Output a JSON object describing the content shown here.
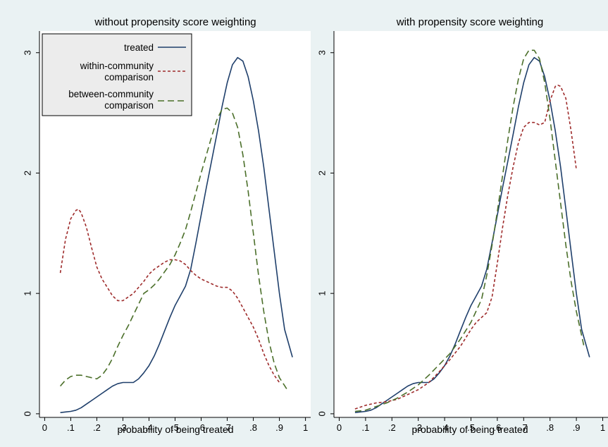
{
  "colors": {
    "figure_background": "#eaf2f3",
    "plot_background": "#ffffff",
    "legend_background": "#ececec",
    "treated": "#1f3f6b",
    "within": "#9e2b2b",
    "between": "#4b6f2a"
  },
  "chart_data": [
    {
      "type": "line",
      "title": "without propensity score weighting",
      "xlabel": "probability of being treated",
      "ylabel": "",
      "xlim": [
        -0.02,
        1.02
      ],
      "ylim": [
        -0.03,
        3.18
      ],
      "xticks": [
        0,
        0.1,
        0.2,
        0.3,
        0.4,
        0.5,
        0.6,
        0.7,
        0.8,
        0.9,
        1
      ],
      "xtick_labels": [
        "0",
        ".1",
        ".2",
        ".3",
        ".4",
        ".5",
        ".6",
        ".7",
        ".8",
        ".9",
        "1"
      ],
      "yticks": [
        0,
        1,
        2,
        3
      ],
      "ytick_labels": [
        "0",
        "1",
        "2",
        "3"
      ],
      "grid": false,
      "legend": {
        "placement": "top-left",
        "entries": [
          {
            "label_lines": [
              "treated"
            ],
            "series": "treated"
          },
          {
            "label_lines": [
              "within-community",
              "comparison"
            ],
            "series": "within"
          },
          {
            "label_lines": [
              "between-community",
              "comparison"
            ],
            "series": "between"
          }
        ]
      },
      "series": [
        {
          "name": "treated",
          "style": "solid",
          "color_key": "treated",
          "x": [
            0.06,
            0.08,
            0.1,
            0.12,
            0.14,
            0.16,
            0.18,
            0.2,
            0.22,
            0.24,
            0.26,
            0.28,
            0.3,
            0.32,
            0.34,
            0.36,
            0.38,
            0.4,
            0.42,
            0.44,
            0.46,
            0.48,
            0.5,
            0.52,
            0.54,
            0.56,
            0.58,
            0.6,
            0.62,
            0.64,
            0.66,
            0.68,
            0.7,
            0.72,
            0.74,
            0.76,
            0.78,
            0.8,
            0.82,
            0.84,
            0.86,
            0.88,
            0.9,
            0.92,
            0.95
          ],
          "y": [
            0.01,
            0.015,
            0.02,
            0.03,
            0.05,
            0.08,
            0.11,
            0.14,
            0.17,
            0.2,
            0.23,
            0.25,
            0.26,
            0.26,
            0.26,
            0.29,
            0.34,
            0.4,
            0.48,
            0.58,
            0.69,
            0.8,
            0.9,
            0.98,
            1.06,
            1.2,
            1.42,
            1.65,
            1.88,
            2.1,
            2.32,
            2.55,
            2.75,
            2.9,
            2.96,
            2.93,
            2.8,
            2.6,
            2.35,
            2.05,
            1.7,
            1.35,
            1.0,
            0.7,
            0.47
          ]
        },
        {
          "name": "within-community comparison",
          "style": "short-dash",
          "color_key": "within",
          "x": [
            0.06,
            0.08,
            0.1,
            0.12,
            0.13,
            0.14,
            0.16,
            0.18,
            0.2,
            0.22,
            0.24,
            0.26,
            0.28,
            0.3,
            0.32,
            0.34,
            0.36,
            0.38,
            0.4,
            0.42,
            0.44,
            0.46,
            0.48,
            0.5,
            0.52,
            0.54,
            0.56,
            0.58,
            0.6,
            0.62,
            0.64,
            0.66,
            0.68,
            0.7,
            0.72,
            0.74,
            0.76,
            0.78,
            0.8,
            0.82,
            0.84,
            0.86,
            0.88,
            0.9
          ],
          "y": [
            1.17,
            1.45,
            1.62,
            1.69,
            1.7,
            1.67,
            1.55,
            1.38,
            1.22,
            1.12,
            1.05,
            0.98,
            0.94,
            0.94,
            0.97,
            1.0,
            1.05,
            1.1,
            1.16,
            1.2,
            1.23,
            1.26,
            1.28,
            1.28,
            1.27,
            1.24,
            1.19,
            1.15,
            1.12,
            1.1,
            1.08,
            1.06,
            1.05,
            1.05,
            1.02,
            0.96,
            0.88,
            0.8,
            0.72,
            0.62,
            0.5,
            0.4,
            0.32,
            0.26
          ]
        },
        {
          "name": "between-community comparison",
          "style": "long-dash",
          "color_key": "between",
          "x": [
            0.06,
            0.08,
            0.1,
            0.12,
            0.14,
            0.16,
            0.18,
            0.2,
            0.22,
            0.24,
            0.26,
            0.28,
            0.3,
            0.32,
            0.34,
            0.36,
            0.38,
            0.4,
            0.42,
            0.44,
            0.46,
            0.48,
            0.5,
            0.52,
            0.54,
            0.56,
            0.58,
            0.6,
            0.62,
            0.64,
            0.66,
            0.68,
            0.7,
            0.72,
            0.74,
            0.76,
            0.78,
            0.8,
            0.82,
            0.84,
            0.86,
            0.88,
            0.9,
            0.93
          ],
          "y": [
            0.23,
            0.28,
            0.31,
            0.32,
            0.32,
            0.31,
            0.3,
            0.29,
            0.32,
            0.38,
            0.46,
            0.56,
            0.65,
            0.73,
            0.82,
            0.91,
            1.0,
            1.03,
            1.07,
            1.12,
            1.18,
            1.24,
            1.32,
            1.42,
            1.53,
            1.68,
            1.84,
            2.0,
            2.15,
            2.3,
            2.44,
            2.53,
            2.54,
            2.5,
            2.38,
            2.15,
            1.85,
            1.5,
            1.15,
            0.85,
            0.6,
            0.42,
            0.3,
            0.2
          ]
        }
      ]
    },
    {
      "type": "line",
      "title": "with propensity score weighting",
      "xlabel": "probability of being treated",
      "ylabel": "",
      "xlim": [
        -0.02,
        1.02
      ],
      "ylim": [
        -0.03,
        3.18
      ],
      "xticks": [
        0,
        0.1,
        0.2,
        0.3,
        0.4,
        0.5,
        0.6,
        0.7,
        0.8,
        0.9,
        1
      ],
      "xtick_labels": [
        "0",
        ".1",
        ".2",
        ".3",
        ".4",
        ".5",
        ".6",
        ".7",
        ".8",
        ".9",
        "1"
      ],
      "yticks": [
        0,
        1,
        2,
        3
      ],
      "ytick_labels": [
        "0",
        "1",
        "2",
        "3"
      ],
      "grid": false,
      "series": [
        {
          "name": "treated",
          "style": "solid",
          "color_key": "treated",
          "x": [
            0.06,
            0.08,
            0.1,
            0.12,
            0.14,
            0.16,
            0.18,
            0.2,
            0.22,
            0.24,
            0.26,
            0.28,
            0.3,
            0.32,
            0.34,
            0.36,
            0.38,
            0.4,
            0.42,
            0.44,
            0.46,
            0.48,
            0.5,
            0.52,
            0.54,
            0.56,
            0.58,
            0.6,
            0.62,
            0.64,
            0.66,
            0.68,
            0.7,
            0.72,
            0.74,
            0.76,
            0.78,
            0.8,
            0.82,
            0.84,
            0.86,
            0.88,
            0.9,
            0.92,
            0.95
          ],
          "y": [
            0.01,
            0.015,
            0.02,
            0.03,
            0.05,
            0.08,
            0.11,
            0.14,
            0.17,
            0.2,
            0.23,
            0.25,
            0.26,
            0.26,
            0.26,
            0.29,
            0.34,
            0.4,
            0.48,
            0.58,
            0.69,
            0.8,
            0.9,
            0.98,
            1.06,
            1.2,
            1.42,
            1.65,
            1.88,
            2.1,
            2.32,
            2.55,
            2.75,
            2.9,
            2.96,
            2.93,
            2.8,
            2.6,
            2.35,
            2.05,
            1.7,
            1.35,
            1.0,
            0.7,
            0.47
          ]
        },
        {
          "name": "within-community comparison",
          "style": "short-dash",
          "color_key": "within",
          "x": [
            0.06,
            0.1,
            0.14,
            0.18,
            0.22,
            0.26,
            0.3,
            0.34,
            0.38,
            0.42,
            0.46,
            0.5,
            0.52,
            0.54,
            0.56,
            0.58,
            0.6,
            0.62,
            0.64,
            0.66,
            0.68,
            0.7,
            0.72,
            0.74,
            0.76,
            0.78,
            0.8,
            0.82,
            0.83,
            0.84,
            0.86,
            0.88,
            0.9
          ],
          "y": [
            0.04,
            0.07,
            0.09,
            0.1,
            0.12,
            0.16,
            0.2,
            0.26,
            0.35,
            0.45,
            0.56,
            0.7,
            0.76,
            0.8,
            0.84,
            0.97,
            1.25,
            1.55,
            1.82,
            2.05,
            2.25,
            2.38,
            2.42,
            2.42,
            2.4,
            2.42,
            2.6,
            2.72,
            2.73,
            2.72,
            2.62,
            2.35,
            2.03
          ]
        },
        {
          "name": "between-community comparison",
          "style": "long-dash",
          "color_key": "between",
          "x": [
            0.06,
            0.1,
            0.14,
            0.18,
            0.22,
            0.26,
            0.3,
            0.34,
            0.38,
            0.42,
            0.46,
            0.5,
            0.54,
            0.56,
            0.58,
            0.6,
            0.62,
            0.64,
            0.66,
            0.68,
            0.7,
            0.72,
            0.74,
            0.76,
            0.78,
            0.8,
            0.82,
            0.84,
            0.86,
            0.88,
            0.9,
            0.93
          ],
          "y": [
            0.02,
            0.03,
            0.06,
            0.09,
            0.13,
            0.18,
            0.24,
            0.32,
            0.41,
            0.5,
            0.62,
            0.76,
            0.95,
            1.15,
            1.4,
            1.68,
            1.98,
            2.28,
            2.55,
            2.78,
            2.95,
            3.02,
            3.02,
            2.95,
            2.75,
            2.45,
            2.1,
            1.75,
            1.4,
            1.1,
            0.85,
            0.55
          ]
        }
      ]
    }
  ]
}
